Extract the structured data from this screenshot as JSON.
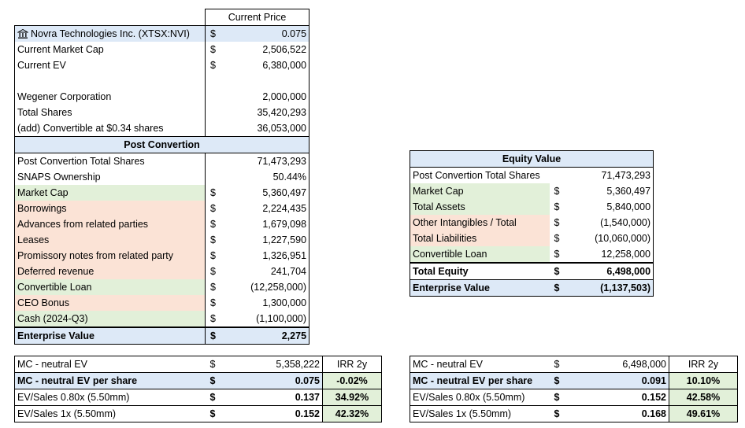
{
  "main_table": {
    "header": "Current Price",
    "company": "Novra Technologies Inc. (XTSX:NVI)",
    "price": "0.075",
    "market_cap_label": "Current Market Cap",
    "market_cap": "2,506,522",
    "ev_label": "Current EV",
    "ev": "6,380,000",
    "wegener_label": "Wegener Corporation",
    "wegener": "2,000,000",
    "total_shares_label": "Total Shares",
    "total_shares": "35,420,293",
    "convertible_label": "(add) Convertible at $0.34 shares",
    "convertible": "36,053,000",
    "post_header": "Post Convertion",
    "post_rows": [
      {
        "label": "Post Convertion Total Shares",
        "cur": "",
        "value": "71,473,293",
        "style": ""
      },
      {
        "label": "SNAPS Ownership",
        "cur": "",
        "value": "50.44%",
        "style": ""
      },
      {
        "label": "Market Cap",
        "cur": "$",
        "value": "5,360,497",
        "style": "green"
      },
      {
        "label": "Borrowings",
        "cur": "$",
        "value": "2,224,435",
        "style": "red"
      },
      {
        "label": "Advances from related parties",
        "cur": "$",
        "value": "1,679,098",
        "style": "red"
      },
      {
        "label": "Leases",
        "cur": "$",
        "value": "1,227,590",
        "style": "red"
      },
      {
        "label": "Promissory notes from related party",
        "cur": "$",
        "value": "1,326,951",
        "style": "red"
      },
      {
        "label": "Deferred revenue",
        "cur": "$",
        "value": "241,704",
        "style": "red"
      },
      {
        "label": "Convertible Loan",
        "cur": "$",
        "value": "(12,258,000)",
        "style": "green"
      },
      {
        "label": "CEO Bonus",
        "cur": "$",
        "value": "1,300,000",
        "style": "red"
      },
      {
        "label": "Cash (2024-Q3)",
        "cur": "$",
        "value": "(1,100,000)",
        "style": "green"
      }
    ],
    "enterprise_label": "Enterprise Value",
    "enterprise": "2,275"
  },
  "equity_table": {
    "header": "Equity Value",
    "rows": [
      {
        "label": "Post Convertion Total Shares",
        "cur": "",
        "value": "71,473,293",
        "style": ""
      },
      {
        "label": "Market Cap",
        "cur": "$",
        "value": "5,360,497",
        "style": "green"
      },
      {
        "label": "Total Assets",
        "cur": "$",
        "value": "5,840,000",
        "style": "green"
      },
      {
        "label": "Other Intangibles / Total",
        "cur": "$",
        "value": "(1,540,000)",
        "style": "red"
      },
      {
        "label": "Total Liabilities",
        "cur": "$",
        "value": "(10,060,000)",
        "style": "red"
      },
      {
        "label": "Convertible Loan",
        "cur": "$",
        "value": "12,258,000",
        "style": "green"
      }
    ],
    "total_equity_label": "Total Equity",
    "total_equity": "6,498,000",
    "enterprise_label": "Enterprise Value",
    "enterprise": "(1,137,503)"
  },
  "irr_left": {
    "row1": {
      "label": "MC - neutral EV",
      "cur": "$",
      "value": "5,358,222",
      "irr_header": "IRR 2y"
    },
    "row2": {
      "label": "MC - neutral EV per share",
      "cur": "$",
      "value": "0.075",
      "irr": "-0.02%"
    },
    "row3": {
      "label": "EV/Sales 0.80x (5.50mm)",
      "cur": "$",
      "value": "0.137",
      "irr": "34.92%"
    },
    "row4": {
      "label": "EV/Sales 1x (5.50mm)",
      "cur": "$",
      "value": "0.152",
      "irr": "42.32%"
    }
  },
  "irr_right": {
    "row1": {
      "label": "MC - neutral EV",
      "cur": "$",
      "value": "6,498,000",
      "irr_header": "IRR 2y"
    },
    "row2": {
      "label": "MC - neutral EV per share",
      "cur": "$",
      "value": "0.091",
      "irr": "10.10%"
    },
    "row3": {
      "label": "EV/Sales 0.80x (5.50mm)",
      "cur": "$",
      "value": "0.152",
      "irr": "42.58%"
    },
    "row4": {
      "label": "EV/Sales 1x (5.50mm)",
      "cur": "$",
      "value": "0.168",
      "irr": "49.61%"
    }
  },
  "icons": {
    "company": "bank-icon"
  }
}
